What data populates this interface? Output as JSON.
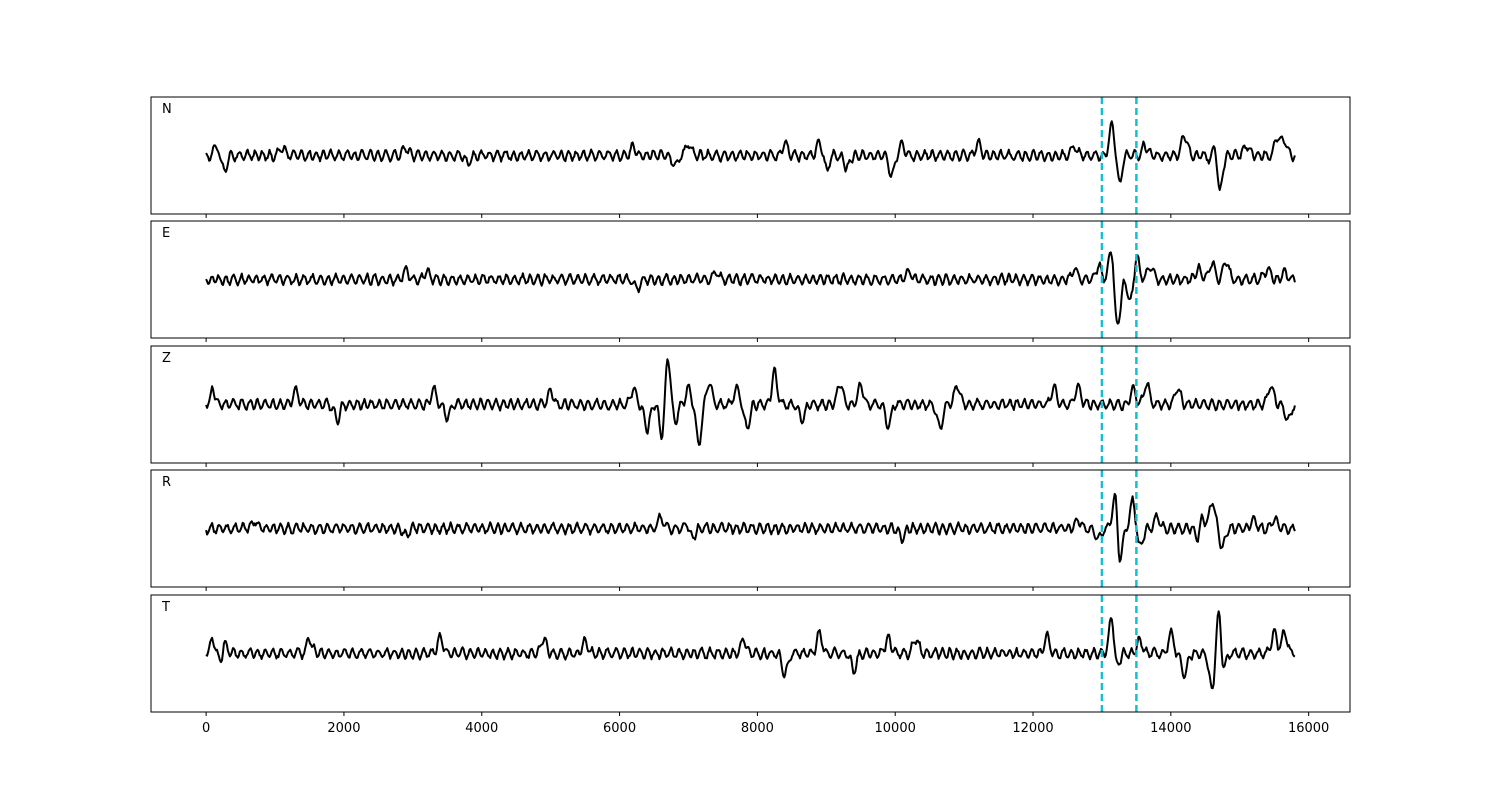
{
  "chart_data": {
    "type": "line",
    "title": "",
    "xlabel": "",
    "ylabel": "",
    "xlim": [
      -800,
      16600
    ],
    "ylim": [
      -1,
      1
    ],
    "xticks": [
      0,
      2000,
      4000,
      6000,
      8000,
      10000,
      12000,
      14000,
      16000
    ],
    "xtick_labels": [
      "0",
      "2000",
      "4000",
      "6000",
      "8000",
      "10000",
      "12000",
      "14000",
      "16000"
    ],
    "sample_range": [
      0,
      15800
    ],
    "grid": false,
    "legend": "none",
    "line_color": "#000000",
    "marker_color": "#17becf",
    "markers": [
      13000,
      13500
    ],
    "panels": [
      {
        "label": "N",
        "peaks": [
          {
            "x": 150,
            "y": 0.18
          },
          {
            "x": 260,
            "y": -0.28
          },
          {
            "x": 1100,
            "y": 0.15
          },
          {
            "x": 2900,
            "y": 0.14
          },
          {
            "x": 3800,
            "y": -0.14
          },
          {
            "x": 6200,
            "y": 0.15
          },
          {
            "x": 6800,
            "y": -0.18
          },
          {
            "x": 7000,
            "y": 0.22
          },
          {
            "x": 8400,
            "y": 0.22
          },
          {
            "x": 8900,
            "y": 0.28
          },
          {
            "x": 9000,
            "y": -0.26
          },
          {
            "x": 9300,
            "y": -0.22
          },
          {
            "x": 9950,
            "y": -0.38
          },
          {
            "x": 10100,
            "y": 0.22
          },
          {
            "x": 11200,
            "y": 0.22
          },
          {
            "x": 12600,
            "y": 0.16
          },
          {
            "x": 13150,
            "y": 0.6
          },
          {
            "x": 13250,
            "y": -0.5
          },
          {
            "x": 13620,
            "y": 0.18
          },
          {
            "x": 14200,
            "y": 0.38
          },
          {
            "x": 14600,
            "y": -0.18
          },
          {
            "x": 14650,
            "y": 0.55
          },
          {
            "x": 14700,
            "y": -0.88
          },
          {
            "x": 15100,
            "y": 0.2
          },
          {
            "x": 15550,
            "y": 0.35
          },
          {
            "x": 15650,
            "y": 0.25
          }
        ]
      },
      {
        "label": "E",
        "peaks": [
          {
            "x": 2900,
            "y": 0.18
          },
          {
            "x": 3200,
            "y": 0.14
          },
          {
            "x": 6250,
            "y": -0.18
          },
          {
            "x": 7400,
            "y": 0.14
          },
          {
            "x": 10200,
            "y": 0.14
          },
          {
            "x": 12600,
            "y": 0.2
          },
          {
            "x": 12950,
            "y": 0.25
          },
          {
            "x": 13150,
            "y": 0.82
          },
          {
            "x": 13250,
            "y": -0.35
          },
          {
            "x": 13200,
            "y": -0.85
          },
          {
            "x": 13420,
            "y": -0.45
          },
          {
            "x": 13500,
            "y": 0.45
          },
          {
            "x": 13700,
            "y": 0.25
          },
          {
            "x": 14400,
            "y": 0.2
          },
          {
            "x": 14600,
            "y": 0.3
          },
          {
            "x": 14800,
            "y": 0.35
          },
          {
            "x": 15400,
            "y": 0.2
          },
          {
            "x": 15650,
            "y": 0.15
          }
        ]
      },
      {
        "label": "Z",
        "peaks": [
          {
            "x": 100,
            "y": 0.24
          },
          {
            "x": 1300,
            "y": 0.26
          },
          {
            "x": 1900,
            "y": -0.28
          },
          {
            "x": 3300,
            "y": 0.28
          },
          {
            "x": 3500,
            "y": -0.24
          },
          {
            "x": 5000,
            "y": 0.26
          },
          {
            "x": 6200,
            "y": 0.28
          },
          {
            "x": 6400,
            "y": -0.45
          },
          {
            "x": 6620,
            "y": -0.62
          },
          {
            "x": 6700,
            "y": 0.95
          },
          {
            "x": 6800,
            "y": -0.35
          },
          {
            "x": 7000,
            "y": 0.3
          },
          {
            "x": 7150,
            "y": -0.7
          },
          {
            "x": 7300,
            "y": 0.4
          },
          {
            "x": 7700,
            "y": 0.3
          },
          {
            "x": 7850,
            "y": -0.45
          },
          {
            "x": 8250,
            "y": 0.6
          },
          {
            "x": 8650,
            "y": -0.3
          },
          {
            "x": 9200,
            "y": 0.4
          },
          {
            "x": 9500,
            "y": 0.35
          },
          {
            "x": 9900,
            "y": -0.4
          },
          {
            "x": 10650,
            "y": -0.46
          },
          {
            "x": 10900,
            "y": 0.35
          },
          {
            "x": 12300,
            "y": 0.3
          },
          {
            "x": 12650,
            "y": 0.35
          },
          {
            "x": 13450,
            "y": 0.3
          },
          {
            "x": 13650,
            "y": 0.38
          },
          {
            "x": 14100,
            "y": 0.3
          },
          {
            "x": 15450,
            "y": 0.35
          },
          {
            "x": 15700,
            "y": -0.3
          }
        ]
      },
      {
        "label": "R",
        "peaks": [
          {
            "x": 700,
            "y": 0.14
          },
          {
            "x": 2900,
            "y": -0.14
          },
          {
            "x": 6600,
            "y": 0.2
          },
          {
            "x": 7000,
            "y": 0.14
          },
          {
            "x": 7050,
            "y": -0.24
          },
          {
            "x": 10100,
            "y": -0.18
          },
          {
            "x": 12650,
            "y": 0.16
          },
          {
            "x": 12950,
            "y": -0.2
          },
          {
            "x": 13200,
            "y": 0.85
          },
          {
            "x": 13250,
            "y": -0.82
          },
          {
            "x": 13450,
            "y": 0.52
          },
          {
            "x": 13550,
            "y": -0.38
          },
          {
            "x": 13800,
            "y": 0.2
          },
          {
            "x": 14450,
            "y": 0.28
          },
          {
            "x": 14600,
            "y": 0.52
          },
          {
            "x": 14400,
            "y": -0.25
          },
          {
            "x": 14750,
            "y": -0.35
          },
          {
            "x": 15200,
            "y": 0.16
          },
          {
            "x": 15500,
            "y": 0.16
          }
        ]
      },
      {
        "label": "T",
        "peaks": [
          {
            "x": 100,
            "y": 0.25
          },
          {
            "x": 260,
            "y": 0.3
          },
          {
            "x": 220,
            "y": -0.26
          },
          {
            "x": 1500,
            "y": 0.25
          },
          {
            "x": 3400,
            "y": 0.3
          },
          {
            "x": 4900,
            "y": 0.28
          },
          {
            "x": 5500,
            "y": 0.22
          },
          {
            "x": 7800,
            "y": 0.25
          },
          {
            "x": 8400,
            "y": -0.42
          },
          {
            "x": 8900,
            "y": 0.36
          },
          {
            "x": 9400,
            "y": -0.3
          },
          {
            "x": 9900,
            "y": 0.3
          },
          {
            "x": 10300,
            "y": 0.28
          },
          {
            "x": 12200,
            "y": 0.3
          },
          {
            "x": 13150,
            "y": 0.82
          },
          {
            "x": 13200,
            "y": -0.45
          },
          {
            "x": 13550,
            "y": 0.25
          },
          {
            "x": 14000,
            "y": 0.35
          },
          {
            "x": 14200,
            "y": -0.4
          },
          {
            "x": 14600,
            "y": -0.7
          },
          {
            "x": 14700,
            "y": 0.95
          },
          {
            "x": 14750,
            "y": -0.5
          },
          {
            "x": 15500,
            "y": 0.4
          },
          {
            "x": 15650,
            "y": 0.38
          }
        ]
      }
    ]
  }
}
